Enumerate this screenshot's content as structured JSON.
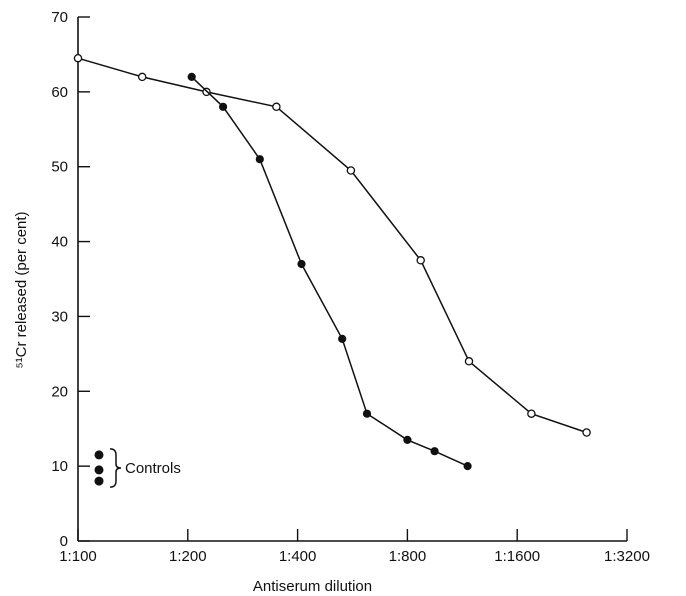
{
  "chart_data": {
    "type": "line",
    "xlabel": "Antiserum dilution",
    "ylabel": "⁵¹Cr released (per cent)",
    "x_scale": "log2",
    "x_ticks": [
      {
        "label": "1:100",
        "value": 100
      },
      {
        "label": "1:200",
        "value": 200
      },
      {
        "label": "1:400",
        "value": 400
      },
      {
        "label": "1:800",
        "value": 800
      },
      {
        "label": "1:1600",
        "value": 1600
      },
      {
        "label": "1:3200",
        "value": 3200
      }
    ],
    "y_ticks": [
      0,
      10,
      20,
      30,
      40,
      50,
      60,
      70
    ],
    "ylim": [
      0,
      70
    ],
    "xlim": [
      100,
      3200
    ],
    "series": [
      {
        "marker": "open-circle",
        "points": [
          {
            "x": 100,
            "y": 64.5
          },
          {
            "x": 150,
            "y": 62
          },
          {
            "x": 225,
            "y": 60
          },
          {
            "x": 350,
            "y": 58
          },
          {
            "x": 560,
            "y": 49.5
          },
          {
            "x": 870,
            "y": 37.5
          },
          {
            "x": 1180,
            "y": 24
          },
          {
            "x": 1750,
            "y": 17
          },
          {
            "x": 2480,
            "y": 14.5
          }
        ]
      },
      {
        "marker": "filled-circle",
        "points": [
          {
            "x": 205,
            "y": 62
          },
          {
            "x": 250,
            "y": 58
          },
          {
            "x": 315,
            "y": 51
          },
          {
            "x": 410,
            "y": 37
          },
          {
            "x": 530,
            "y": 27
          },
          {
            "x": 620,
            "y": 17
          },
          {
            "x": 800,
            "y": 13.5
          },
          {
            "x": 950,
            "y": 12
          },
          {
            "x": 1170,
            "y": 10
          }
        ]
      }
    ],
    "controls": {
      "label": "Controls",
      "values": [
        11.5,
        9.5,
        8
      ]
    }
  }
}
